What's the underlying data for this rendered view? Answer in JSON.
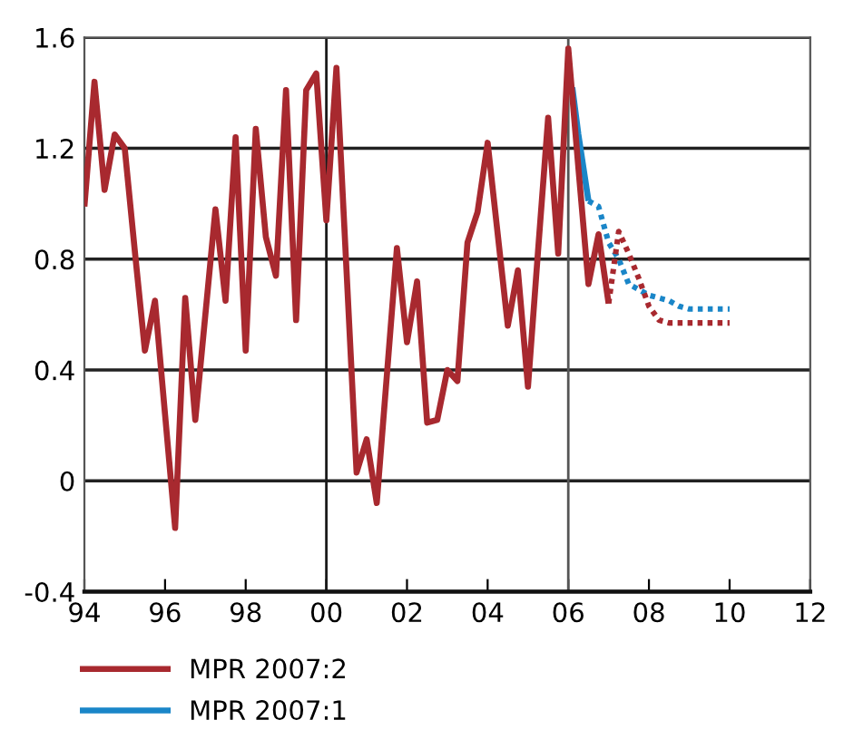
{
  "chart_data": {
    "type": "line",
    "xlim": [
      1994,
      2012
    ],
    "ylim": [
      -0.4,
      1.6
    ],
    "xticks": [
      {
        "value": 1994,
        "label": "94"
      },
      {
        "value": 1996,
        "label": "96"
      },
      {
        "value": 1998,
        "label": "98"
      },
      {
        "value": 2000,
        "label": "00"
      },
      {
        "value": 2002,
        "label": "02"
      },
      {
        "value": 2004,
        "label": "04"
      },
      {
        "value": 2006,
        "label": "06"
      },
      {
        "value": 2008,
        "label": "08"
      },
      {
        "value": 2010,
        "label": "10"
      },
      {
        "value": 2012,
        "label": "12"
      }
    ],
    "yticks": [
      -0.4,
      0,
      0.4,
      0.8,
      1.2,
      1.6
    ],
    "grid": "y",
    "legend": "bottom left",
    "marker": "none",
    "ref_lines": [
      {
        "axis": "x",
        "value": 2000,
        "label": null,
        "color": "#1a1a1a"
      },
      {
        "axis": "x",
        "value": 2006,
        "label": null,
        "color": "#555555"
      }
    ],
    "series": [
      {
        "name": "MPR 2007:1",
        "color": "#1a86c8",
        "line_style": "solid",
        "x": [
          2006.1,
          2006.25,
          2006.5
        ],
        "values": [
          1.42,
          1.25,
          1.01
        ]
      },
      {
        "color": "#1a86c8",
        "line_style": "dotted",
        "x": [
          2006.5,
          2006.75,
          2007,
          2007.25,
          2007.5,
          2007.75,
          2008,
          2008.25,
          2008.5,
          2008.75,
          2009,
          2009.25,
          2009.5,
          2009.75,
          2010
        ],
        "values": [
          1.01,
          0.99,
          0.86,
          0.8,
          0.71,
          0.69,
          0.67,
          0.66,
          0.65,
          0.63,
          0.62,
          0.62,
          0.62,
          0.62,
          0.62
        ]
      },
      {
        "name": "MPR 2007:2",
        "color": "#a8292f",
        "line_style": "solid",
        "x": [
          1994,
          1994.25,
          1994.5,
          1994.75,
          1995,
          1995.25,
          1995.5,
          1995.75,
          1996,
          1996.25,
          1996.5,
          1996.75,
          1997,
          1997.25,
          1997.5,
          1997.75,
          1998,
          1998.25,
          1998.5,
          1998.75,
          1999,
          1999.25,
          1999.5,
          1999.75,
          2000,
          2000.25,
          2000.5,
          2000.75,
          2001,
          2001.25,
          2001.5,
          2001.75,
          2002,
          2002.25,
          2002.5,
          2002.75,
          2003,
          2003.25,
          2003.5,
          2003.75,
          2004,
          2004.25,
          2004.5,
          2004.75,
          2005,
          2005.25,
          2005.5,
          2005.75,
          2006,
          2006.25,
          2006.5,
          2006.75,
          2007
        ],
        "values": [
          0.99,
          1.44,
          1.05,
          1.25,
          1.2,
          0.83,
          0.47,
          0.65,
          0.24,
          -0.17,
          0.66,
          0.22,
          0.6,
          0.98,
          0.65,
          1.24,
          0.47,
          1.27,
          0.88,
          0.74,
          1.41,
          0.58,
          1.41,
          1.47,
          0.94,
          1.49,
          0.76,
          0.03,
          0.15,
          -0.08,
          0.38,
          0.84,
          0.5,
          0.72,
          0.21,
          0.22,
          0.4,
          0.36,
          0.86,
          0.97,
          1.22,
          0.89,
          0.56,
          0.76,
          0.34,
          0.83,
          1.31,
          0.82,
          1.56,
          1.13,
          0.71,
          0.89,
          0.64
        ]
      },
      {
        "color": "#a8292f",
        "line_style": "dotted",
        "x": [
          2007,
          2007.25,
          2007.5,
          2007.75,
          2008,
          2008.25,
          2008.5,
          2008.75,
          2009,
          2009.25,
          2009.5,
          2009.75,
          2010
        ],
        "values": [
          0.64,
          0.9,
          0.82,
          0.73,
          0.63,
          0.58,
          0.57,
          0.57,
          0.57,
          0.57,
          0.57,
          0.57,
          0.57
        ]
      }
    ]
  }
}
